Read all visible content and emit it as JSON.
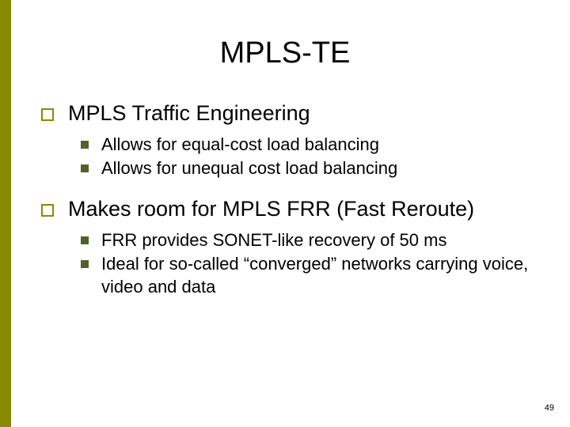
{
  "accent_color": "#8a8a00",
  "bullet_hollow_color": "#8a8a00",
  "bullet_solid_color": "#4f6228",
  "title": "MPLS-TE",
  "items": [
    {
      "text": "MPLS Traffic Engineering",
      "sub": [
        "Allows for equal-cost load balancing",
        "Allows for unequal cost load balancing"
      ]
    },
    {
      "text": "Makes room for MPLS FRR (Fast Reroute)",
      "sub": [
        "FRR provides SONET-like recovery of 50 ms",
        "Ideal for so-called “converged” networks carrying voice, video and data"
      ]
    }
  ],
  "page_number": "49"
}
